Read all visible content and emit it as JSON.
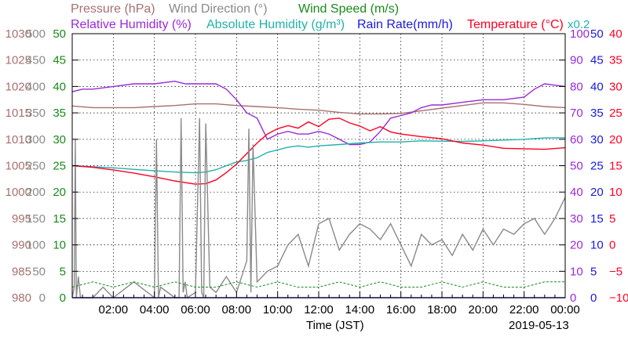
{
  "chart_data": {
    "type": "line",
    "xlabel": "Time (JST)",
    "date": "2019-05-13",
    "scale_note": "x0.2",
    "grid": true,
    "x_ticks": [
      "02:00",
      "04:00",
      "06:00",
      "08:00",
      "10:00",
      "12:00",
      "14:00",
      "16:00",
      "18:00",
      "20:00",
      "22:00",
      "00:00"
    ],
    "xlim": [
      0,
      24
    ],
    "legend": [
      {
        "text": "Pressure (hPa)",
        "color": "#a87070"
      },
      {
        "text": "Wind Direction (°)",
        "color": "#8a8a8a"
      },
      {
        "text": "Wind Speed (m/s)",
        "color": "#1a8a1a"
      },
      {
        "text": "Relative Humidity (%)",
        "color": "#9a2ad8"
      },
      {
        "text": "Absolute Humidity (g/m³)",
        "color": "#20b2aa"
      },
      {
        "text": "Rain Rate(mm/h)",
        "color": "#1a1ad8"
      },
      {
        "text": "Temperature (°C)",
        "color": "#ff0022"
      }
    ],
    "axes": {
      "pressure": {
        "label_color": "#a87070",
        "ylim": [
          980,
          1030
        ],
        "ticks": [
          "980",
          "985",
          "990",
          "995",
          "1000",
          "1005",
          "1010",
          "1015",
          "1020",
          "1025",
          "1030"
        ]
      },
      "wind_direction": {
        "label_color": "#8a8a8a",
        "ylim": [
          0,
          500
        ],
        "ticks": [
          "0",
          "50",
          "100",
          "150",
          "200",
          "250",
          "300",
          "350",
          "400",
          "450",
          "500"
        ]
      },
      "wind_speed": {
        "label_color": "#1a8a1a",
        "ylim": [
          0,
          50
        ],
        "ticks": [
          "0",
          "5",
          "10",
          "15",
          "20",
          "25",
          "30",
          "35",
          "40",
          "45",
          "50"
        ]
      },
      "relative_humidity": {
        "label_color": "#9a2ad8",
        "ylim": [
          0,
          100
        ],
        "ticks": [
          "0",
          "10",
          "20",
          "30",
          "40",
          "50",
          "60",
          "70",
          "80",
          "90",
          "100"
        ]
      },
      "rain_rate": {
        "label_color": "#1a1ad8",
        "ylim": [
          0,
          50
        ],
        "ticks": [
          "0",
          "5",
          "10",
          "15",
          "20",
          "25",
          "30",
          "35",
          "40",
          "45",
          "50"
        ]
      },
      "temperature": {
        "label_color": "#ff0022",
        "ylim": [
          -10,
          40
        ],
        "ticks": [
          "−10",
          "−5",
          "0",
          "5",
          "10",
          "15",
          "20",
          "25",
          "30",
          "35",
          "40"
        ]
      }
    },
    "series": [
      {
        "name": "Pressure (hPa)",
        "axis": "pressure",
        "color": "#a87070",
        "x": [
          0,
          1,
          2,
          3,
          4,
          5,
          6,
          7,
          8,
          9,
          10,
          11,
          12,
          13,
          14,
          15,
          16,
          17,
          18,
          19,
          20,
          21,
          22,
          23,
          24
        ],
        "y": [
          1016.3,
          1016.0,
          1016.0,
          1016.0,
          1016.2,
          1016.4,
          1016.7,
          1016.7,
          1016.4,
          1016.2,
          1016.0,
          1015.7,
          1015.5,
          1015.1,
          1014.8,
          1014.8,
          1014.9,
          1015.4,
          1015.9,
          1016.4,
          1016.9,
          1016.9,
          1016.6,
          1016.2,
          1016.0
        ]
      },
      {
        "name": "Relative Humidity (%)",
        "axis": "relative_humidity",
        "color": "#9a2ad8",
        "x": [
          0,
          0.5,
          1,
          2,
          3,
          4,
          5,
          5.5,
          6,
          7,
          7.5,
          8,
          8.5,
          9,
          9.5,
          10,
          10.5,
          11,
          11.5,
          12,
          12.5,
          13,
          13.5,
          14,
          14.5,
          15,
          15.5,
          16,
          16.5,
          17,
          17.5,
          18,
          19,
          20,
          21,
          22,
          22.5,
          23,
          24
        ],
        "y": [
          78,
          79,
          79,
          80,
          81,
          81,
          82,
          81,
          81,
          81,
          79,
          75,
          70,
          68,
          60,
          62,
          63,
          62,
          62,
          63,
          62,
          60,
          58,
          58,
          59,
          63,
          68,
          69,
          70,
          72,
          73,
          73,
          74,
          75,
          75,
          76,
          79,
          81,
          80
        ]
      },
      {
        "name": "Absolute Humidity (g/m³)",
        "axis": "relative_humidity",
        "color": "#20b2aa",
        "x": [
          0,
          1,
          2,
          3,
          4,
          5,
          6,
          6.5,
          7,
          7.5,
          8,
          8.5,
          9,
          9.5,
          10,
          10.5,
          11,
          11.5,
          12,
          13,
          14,
          15,
          16,
          17,
          18,
          19,
          20,
          21,
          22,
          23,
          24
        ],
        "y": [
          50,
          49.6,
          49.2,
          48.6,
          48.1,
          47.6,
          47.3,
          47.6,
          48.5,
          50,
          51.4,
          52,
          53,
          55,
          56,
          57,
          57.5,
          57,
          57.5,
          58,
          58.6,
          59,
          59,
          59.4,
          59.3,
          59.2,
          59.4,
          59.7,
          60.0,
          60.5,
          60.6
        ]
      },
      {
        "name": "Temperature (°C)",
        "axis": "temperature",
        "color": "#ff0022",
        "x": [
          0,
          1,
          2,
          3,
          4,
          5,
          6,
          6.5,
          7,
          7.5,
          8,
          8.5,
          9,
          9.5,
          10,
          10.5,
          11,
          11.5,
          12,
          12.5,
          13,
          13.5,
          14,
          14.5,
          15,
          15.5,
          16,
          17,
          18,
          19,
          20,
          21,
          22,
          23,
          24
        ],
        "y": [
          15.0,
          14.7,
          14.2,
          13.6,
          12.9,
          12.1,
          11.5,
          11.6,
          12.3,
          13.7,
          15.3,
          17.3,
          19.3,
          21.0,
          22.0,
          22.6,
          22.1,
          23.3,
          22.4,
          23.8,
          24.0,
          23.1,
          22.5,
          21.6,
          22.4,
          21.4,
          21.0,
          20.5,
          20.1,
          19.3,
          18.9,
          18.3,
          18.2,
          18.1,
          18.4
        ]
      },
      {
        "name": "Wind Direction (°)",
        "axis": "wind_direction",
        "color": "#8a8a8a",
        "x": [
          0,
          0.1,
          0.15,
          0.2,
          0.3,
          0.4,
          1,
          1.5,
          2,
          3,
          4,
          4.1,
          4.2,
          4.3,
          5,
          5.2,
          5.3,
          5.4,
          5.5,
          5.6,
          6,
          6.2,
          6.3,
          6.4,
          6.5,
          6.7,
          7,
          7.5,
          8,
          8.5,
          8.6,
          8.7,
          8.8,
          9,
          9.5,
          10,
          10.5,
          11,
          11.5,
          12,
          12.5,
          13,
          13.5,
          14,
          14.5,
          15,
          15.5,
          16,
          16.5,
          17,
          17.5,
          18,
          18.5,
          19,
          19.5,
          20,
          20.5,
          21,
          21.5,
          22,
          22.5,
          23,
          23.5,
          24
        ],
        "y": [
          0,
          20,
          300,
          0,
          40,
          0,
          0,
          20,
          0,
          30,
          0,
          300,
          0,
          20,
          0,
          0,
          340,
          10,
          30,
          0,
          10,
          340,
          10,
          0,
          330,
          20,
          10,
          40,
          10,
          70,
          320,
          10,
          290,
          30,
          50,
          60,
          100,
          120,
          60,
          140,
          150,
          90,
          120,
          140,
          130,
          110,
          140,
          100,
          60,
          120,
          100,
          110,
          80,
          120,
          90,
          130,
          100,
          130,
          120,
          140,
          150,
          120,
          150,
          190
        ]
      },
      {
        "name": "Wind Speed (m/s)",
        "axis": "wind_speed",
        "color": "#1a8a1a",
        "x": [
          0,
          1,
          2,
          3,
          4,
          5,
          6,
          7,
          8,
          9,
          10,
          11,
          12,
          13,
          14,
          15,
          16,
          17,
          18,
          19,
          20,
          21,
          22,
          23,
          24
        ],
        "y": [
          2,
          3,
          2,
          3,
          2,
          3,
          2,
          2,
          3,
          2,
          3,
          2,
          2,
          3,
          2,
          3,
          2,
          2,
          3,
          2,
          3,
          2,
          2,
          3,
          3
        ]
      },
      {
        "name": "Rain Rate(mm/h)",
        "axis": "rain_rate",
        "color": "#1a1ad8",
        "x": [
          0,
          24
        ],
        "y": [
          0,
          0
        ]
      }
    ]
  }
}
